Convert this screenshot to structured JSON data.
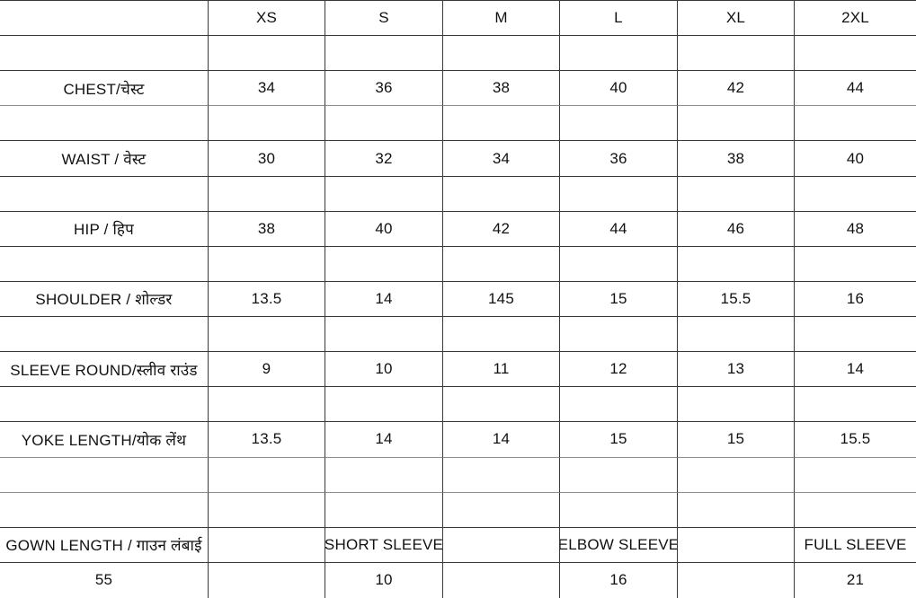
{
  "size_chart": {
    "sizes": [
      "XS",
      "S",
      "M",
      "L",
      "XL",
      "2XL"
    ],
    "grid": [
      [
        "",
        "XS",
        "S",
        "M",
        "L",
        "XL",
        "2XL"
      ],
      [
        "",
        "",
        "",
        "",
        "",
        "",
        ""
      ],
      [
        "CHEST/चेस्ट",
        "34",
        "36",
        "38",
        "40",
        "42",
        "44"
      ],
      [
        "",
        "",
        "",
        "",
        "",
        "",
        ""
      ],
      [
        "WAIST / वेस्ट",
        "30",
        "32",
        "34",
        "36",
        "38",
        "40"
      ],
      [
        "",
        "",
        "",
        "",
        "",
        "",
        ""
      ],
      [
        "HIP / हिप",
        "38",
        "40",
        "42",
        "44",
        "46",
        "48"
      ],
      [
        "",
        "",
        "",
        "",
        "",
        "",
        ""
      ],
      [
        "SHOULDER / शोल्डर",
        "13.5",
        "14",
        "145",
        "15",
        "15.5",
        "16"
      ],
      [
        "",
        "",
        "",
        "",
        "",
        "",
        ""
      ],
      [
        "SLEEVE ROUND/स्लीव राउंड",
        "9",
        "10",
        "11",
        "12",
        "13",
        "14"
      ],
      [
        "",
        "",
        "",
        "",
        "",
        "",
        ""
      ],
      [
        "YOKE LENGTH/योक लेंथ",
        "13.5",
        "14",
        "14",
        "15",
        "15",
        "15.5"
      ],
      [
        "",
        "",
        "",
        "",
        "",
        "",
        ""
      ],
      [
        "",
        "",
        "",
        "",
        "",
        "",
        ""
      ],
      [
        "GOWN LENGTH / गाउन लंबाई",
        "",
        "SHORT SLEEVE",
        "",
        "ELBOW SLEEVE",
        "",
        "FULL SLEEVE"
      ],
      [
        "55",
        "",
        "10",
        "",
        "16",
        "",
        "21"
      ]
    ],
    "row_labels": [
      "CHEST/चेस्ट",
      "WAIST / वेस्ट",
      "HIP / हिप",
      "SHOULDER / शोल्डर",
      "SLEEVE ROUND/स्लीव राउंड",
      "YOKE LENGTH/योक लेंथ",
      "GOWN LENGTH / गाउन लंबाई"
    ],
    "gown_length_sleeve_types": [
      "SHORT SLEEVE",
      "ELBOW SLEEVE",
      "FULL SLEEVE"
    ],
    "gown_length_values": [
      "55",
      "10",
      "16",
      "21"
    ],
    "colors": {
      "background": "#ffffff",
      "border": "#3a3a3a",
      "grey_gridline": "#8f8f8f",
      "text": "#111111"
    }
  }
}
